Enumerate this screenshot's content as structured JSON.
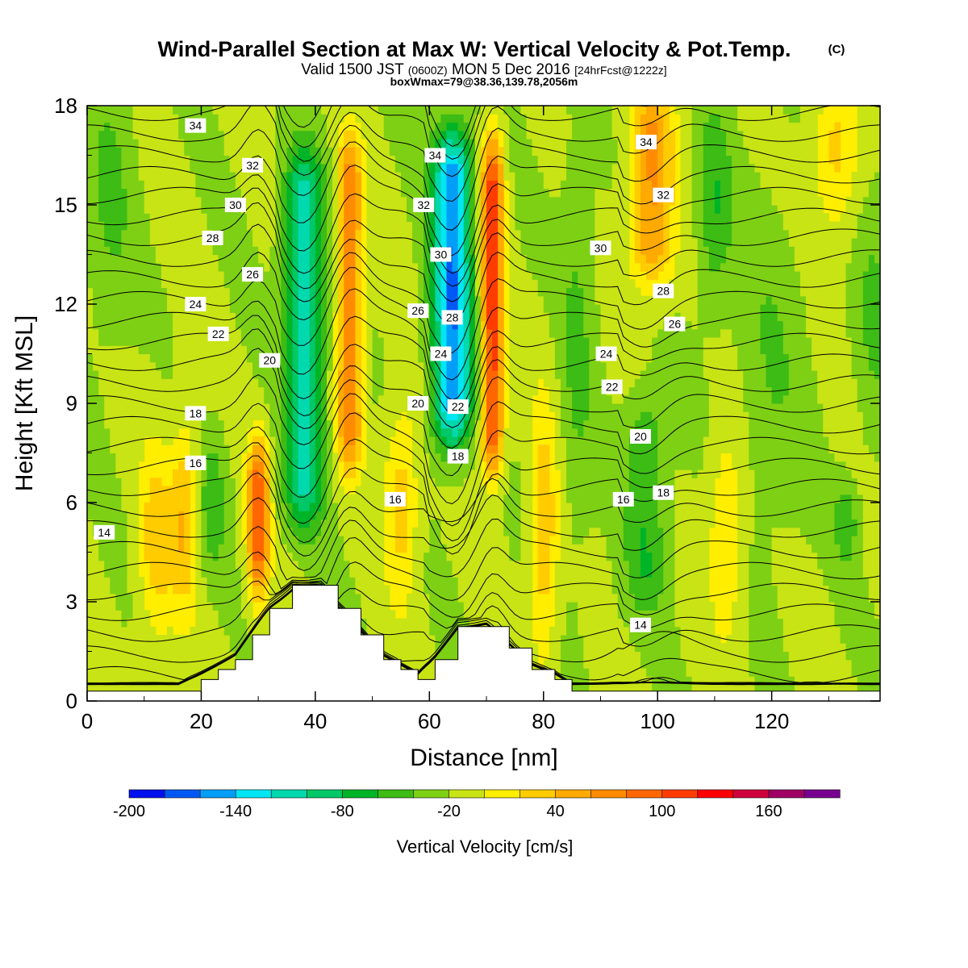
{
  "title": {
    "main": "Wind-Parallel Section at Max W: Vertical Velocity & Pot.Temp.",
    "copyright": "(C)",
    "line2_a": "Valid 1500 JST",
    "line2_b": "(0600Z)",
    "line2_c": "MON 5 Dec 2016",
    "line2_d": "[24hrFcst@1222z]",
    "line3": "boxWmax=79@38.36,139.78,2056m"
  },
  "chart_data": {
    "type": "heatmap",
    "xlabel": "Distance [nm]",
    "ylabel": "Height [Kft MSL]",
    "xlim": [
      0,
      139
    ],
    "ylim": [
      0,
      18
    ],
    "x_ticks": [
      "0",
      "20",
      "40",
      "60",
      "80",
      "100",
      "120"
    ],
    "y_ticks": [
      "0",
      "3",
      "6",
      "9",
      "12",
      "15",
      "18"
    ],
    "colorbar": {
      "label": "Vertical Velocity [cm/s]",
      "range": [
        -200,
        200
      ],
      "step": 20,
      "tick_labels": [
        "-200",
        "-140",
        "-80",
        "-20",
        "40",
        "100",
        "160"
      ],
      "colors": [
        "#0010ee",
        "#0058f4",
        "#009ef6",
        "#00e6f4",
        "#00d8ae",
        "#00c866",
        "#00b428",
        "#3cbc14",
        "#7ed014",
        "#c8e414",
        "#ffee00",
        "#ffcc00",
        "#ffaa00",
        "#ff8c00",
        "#ff6600",
        "#ff3c00",
        "#ff0000",
        "#d0003c",
        "#a00064",
        "#780090"
      ]
    },
    "vertical_velocity_features": [
      {
        "kind": "downdraft",
        "x_center": 38,
        "x_range": [
          33,
          42
        ],
        "z_range": [
          4,
          18
        ],
        "peak": -90
      },
      {
        "kind": "downdraft",
        "x_center": 64,
        "x_range": [
          60,
          69
        ],
        "z_range": [
          7,
          18
        ],
        "peak": -140
      },
      {
        "kind": "downdraft",
        "x_center": 98,
        "x_range": [
          93,
          103
        ],
        "z_range": [
          3,
          9
        ],
        "peak": -40
      },
      {
        "kind": "updraft",
        "x_center": 30,
        "x_range": [
          28,
          33
        ],
        "z_range": [
          4,
          7
        ],
        "peak": 110
      },
      {
        "kind": "updraft",
        "x_center": 46,
        "x_range": [
          43,
          49
        ],
        "z_range": [
          6,
          18
        ],
        "peak": 90
      },
      {
        "kind": "updraft",
        "x_center": 71,
        "x_range": [
          69,
          74
        ],
        "z_range": [
          6,
          18
        ],
        "peak": 130
      },
      {
        "kind": "updraft",
        "x_center": 99,
        "x_range": [
          94,
          104
        ],
        "z_range": [
          13,
          18
        ],
        "peak": 80
      }
    ],
    "terrain": {
      "x": [
        0,
        16,
        20,
        23,
        26,
        29,
        32,
        36,
        41,
        44,
        48,
        52,
        55,
        58,
        61,
        65,
        70,
        74,
        78,
        82,
        85,
        139
      ],
      "height": [
        0.3,
        0.3,
        0.65,
        0.95,
        1.25,
        2.0,
        2.8,
        3.5,
        3.5,
        2.8,
        2.0,
        1.25,
        0.95,
        0.65,
        1.25,
        2.25,
        2.25,
        1.6,
        0.95,
        0.65,
        0.3,
        0.3
      ]
    },
    "potential_temperature": {
      "contour_interval": 1,
      "labels": [
        {
          "value": "34",
          "x": 19,
          "z": 17.4
        },
        {
          "value": "32",
          "x": 29,
          "z": 16.2
        },
        {
          "value": "30",
          "x": 26,
          "z": 15.0
        },
        {
          "value": "28",
          "x": 22,
          "z": 14.0
        },
        {
          "value": "26",
          "x": 29,
          "z": 12.9
        },
        {
          "value": "24",
          "x": 19,
          "z": 12.0
        },
        {
          "value": "22",
          "x": 23,
          "z": 11.1
        },
        {
          "value": "20",
          "x": 32,
          "z": 10.3
        },
        {
          "value": "18",
          "x": 19,
          "z": 8.7
        },
        {
          "value": "16",
          "x": 19,
          "z": 7.2
        },
        {
          "value": "14",
          "x": 3,
          "z": 5.1
        },
        {
          "value": "34",
          "x": 61,
          "z": 16.5
        },
        {
          "value": "32",
          "x": 59,
          "z": 15.0
        },
        {
          "value": "30",
          "x": 62,
          "z": 13.5
        },
        {
          "value": "26",
          "x": 58,
          "z": 11.8
        },
        {
          "value": "28",
          "x": 64,
          "z": 11.6
        },
        {
          "value": "24",
          "x": 62,
          "z": 10.5
        },
        {
          "value": "20",
          "x": 58,
          "z": 9.0
        },
        {
          "value": "22",
          "x": 65,
          "z": 8.9
        },
        {
          "value": "18",
          "x": 65,
          "z": 7.4
        },
        {
          "value": "16",
          "x": 54,
          "z": 6.1
        },
        {
          "value": "34",
          "x": 98,
          "z": 16.9
        },
        {
          "value": "32",
          "x": 101,
          "z": 15.3
        },
        {
          "value": "30",
          "x": 90,
          "z": 13.7
        },
        {
          "value": "28",
          "x": 101,
          "z": 12.4
        },
        {
          "value": "26",
          "x": 103,
          "z": 11.4
        },
        {
          "value": "24",
          "x": 91,
          "z": 10.5
        },
        {
          "value": "22",
          "x": 92,
          "z": 9.5
        },
        {
          "value": "20",
          "x": 97,
          "z": 8.0
        },
        {
          "value": "18",
          "x": 101,
          "z": 6.3
        },
        {
          "value": "16",
          "x": 94,
          "z": 6.1
        },
        {
          "value": "14",
          "x": 97,
          "z": 2.3
        }
      ]
    }
  }
}
